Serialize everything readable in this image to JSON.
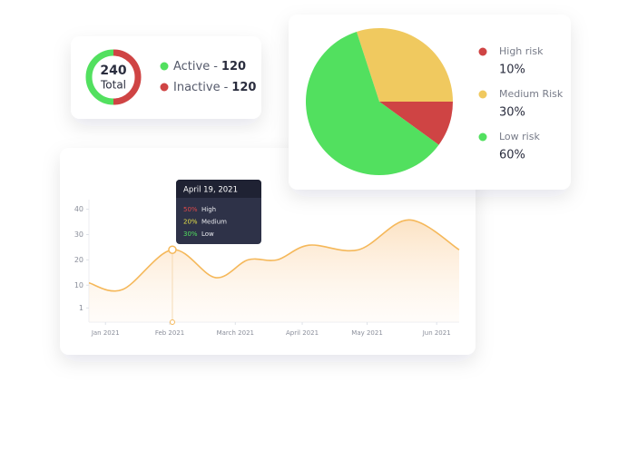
{
  "chart_data": [
    {
      "type": "donut",
      "total": 240,
      "total_label": "Total",
      "legend_separator": "-",
      "series": [
        {
          "name": "Active",
          "color": "#52e05f",
          "value": 120
        },
        {
          "name": "Inactive",
          "color": "#cf4444",
          "value": 120
        }
      ]
    },
    {
      "type": "pie",
      "categories": [
        "High risk",
        "Medium Risk",
        "Low risk"
      ],
      "values": [
        10,
        30,
        60
      ],
      "value_labels": [
        "10%",
        "30%",
        "60%"
      ],
      "colors": [
        "#cf4444",
        "#f0c95f",
        "#52e05f"
      ]
    },
    {
      "type": "line",
      "series": [
        {
          "color": "#f5b85a",
          "x": [
            -0.25,
            0.26,
            1.01,
            1.66,
            2.15,
            2.59,
            3.07,
            3.82,
            4.58,
            5.34
          ],
          "values": [
            10.9,
            8.3,
            24,
            13,
            20,
            20,
            25.8,
            24,
            35.8,
            24
          ]
        }
      ],
      "xlim": [
        -0.25,
        5.34
      ],
      "xticks": [
        {
          "value": 0,
          "label": "Jan 2021"
        },
        {
          "value": 0.97,
          "label": "Feb 2021"
        },
        {
          "value": 1.96,
          "label": "March 2021"
        },
        {
          "value": 2.97,
          "label": "April 2021"
        },
        {
          "value": 3.95,
          "label": "May 2021"
        },
        {
          "value": 5.0,
          "label": "Jun 2021"
        }
      ],
      "ylim": [
        -4.6,
        43.8
      ],
      "yticks": [
        1,
        10,
        20,
        30,
        40
      ],
      "highlight_index": 2,
      "tooltip": {
        "title": "April 19, 2021",
        "rows": [
          {
            "label": "50%",
            "name": "High",
            "color": "#e24a4a"
          },
          {
            "label": "20%",
            "name": "Medium",
            "color": "#e7e24a"
          },
          {
            "label": "30%",
            "name": "Low",
            "color": "#52e05f"
          }
        ]
      }
    }
  ]
}
